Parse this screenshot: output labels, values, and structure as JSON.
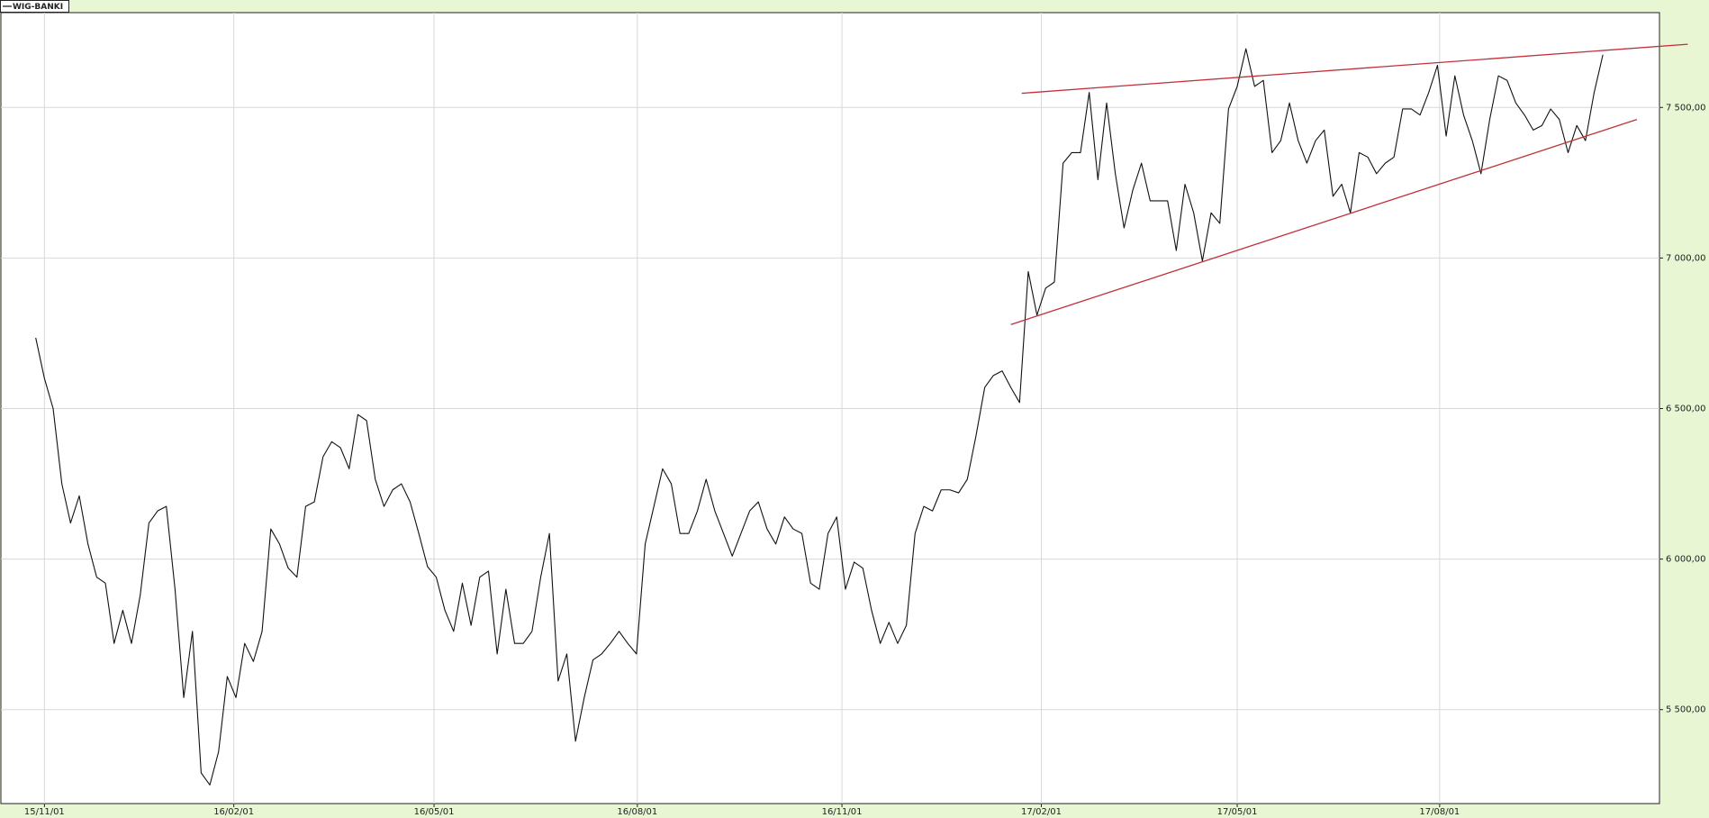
{
  "chart_data": {
    "type": "line",
    "series": [
      {
        "name": "WIG-BANKI",
        "color": "#111111",
        "values": [
          6735,
          6600,
          6500,
          6250,
          6120,
          6210,
          6050,
          5940,
          5920,
          5720,
          5830,
          5720,
          5880,
          6120,
          6160,
          6175,
          5900,
          5540,
          5760,
          5290,
          5250,
          5360,
          5610,
          5540,
          5720,
          5660,
          5760,
          6100,
          6050,
          5970,
          5940,
          6175,
          6190,
          6340,
          6390,
          6370,
          6300,
          6480,
          6460,
          6265,
          6175,
          6230,
          6250,
          6190,
          6085,
          5975,
          5940,
          5830,
          5760,
          5920,
          5780,
          5940,
          5960,
          5685,
          5900,
          5720,
          5720,
          5760,
          5940,
          6085,
          5595,
          5685,
          5395,
          5540,
          5665,
          5685,
          5720,
          5760,
          5720,
          5685,
          6050,
          6175,
          6300,
          6250,
          6085,
          6085,
          6160,
          6265,
          6160,
          6085,
          6010,
          6085,
          6160,
          6190,
          6100,
          6050,
          6140,
          6100,
          6085,
          5920,
          5900,
          6085,
          6140,
          5900,
          5990,
          5970,
          5830,
          5720,
          5790,
          5720,
          5780,
          6085,
          6175,
          6160,
          6230,
          6230,
          6220,
          6265,
          6410,
          6570,
          6610,
          6625,
          6570,
          6520,
          6955,
          6810,
          6900,
          6920,
          7315,
          7350,
          7350,
          7550,
          7260,
          7515,
          7280,
          7100,
          7225,
          7315,
          7190,
          7190,
          7190,
          7025,
          7245,
          7150,
          6990,
          7150,
          7115,
          7495,
          7570,
          7695,
          7570,
          7590,
          7350,
          7390,
          7515,
          7390,
          7315,
          7390,
          7425,
          7205,
          7245,
          7150,
          7350,
          7335,
          7280,
          7315,
          7335,
          7495,
          7495,
          7475,
          7550,
          7640,
          7405,
          7605,
          7475,
          7390,
          7280,
          7460,
          7605,
          7590,
          7515,
          7475,
          7425,
          7440,
          7495,
          7460,
          7350,
          7440,
          7390,
          7550,
          7675
        ]
      }
    ],
    "x": [
      0,
      1,
      2,
      3,
      4,
      5,
      6,
      7,
      8,
      9,
      10,
      11,
      12,
      13,
      14,
      15,
      16,
      17,
      18,
      19,
      20,
      21,
      22,
      23,
      24,
      25,
      26,
      27,
      28,
      29,
      30,
      31,
      32,
      33,
      34,
      35,
      36,
      37,
      38,
      39,
      40,
      41,
      42,
      43,
      44,
      45,
      46,
      47,
      48,
      49,
      50,
      51,
      52,
      53,
      54,
      55,
      56,
      57,
      58,
      59,
      60,
      61,
      62,
      63,
      64,
      65,
      66,
      67,
      68,
      69,
      70,
      71,
      72,
      73,
      74,
      75,
      76,
      77,
      78,
      79,
      80,
      81,
      82,
      83,
      84,
      85,
      86,
      87,
      88,
      89,
      90,
      91,
      92,
      93,
      94,
      95,
      96,
      97,
      98,
      99,
      100,
      101,
      102,
      103,
      104,
      105,
      106,
      107,
      108,
      109,
      110,
      111,
      112,
      113,
      114,
      115,
      116,
      117,
      118,
      119,
      120,
      121,
      122,
      123,
      124,
      125,
      126,
      127,
      128,
      129,
      130,
      131,
      132,
      133,
      134,
      135,
      136,
      137,
      138,
      139,
      140,
      141,
      142,
      143,
      144,
      145,
      146,
      147,
      148,
      149,
      150,
      151,
      152,
      153,
      154,
      155,
      156,
      157,
      158,
      159,
      160,
      161,
      162,
      163,
      164,
      165,
      166,
      167,
      168,
      169,
      170,
      171,
      172,
      173,
      174,
      175,
      176,
      177,
      178,
      179,
      180
    ],
    "xlim": [
      -4,
      186.5
    ],
    "xticks": [
      {
        "value": 1,
        "label": "15/11/01"
      },
      {
        "value": 22.75,
        "label": "16/02/01"
      },
      {
        "value": 45.75,
        "label": "16/05/01"
      },
      {
        "value": 69.1,
        "label": "16/08/01"
      },
      {
        "value": 92.6,
        "label": "16/11/01"
      },
      {
        "value": 115.5,
        "label": "17/02/01"
      },
      {
        "value": 138,
        "label": "17/05/01"
      },
      {
        "value": 161.25,
        "label": "17/08/01"
      }
    ],
    "ylim": [
      5188,
      7815
    ],
    "yticks": [
      {
        "value": 5500,
        "label": "5 500,00"
      },
      {
        "value": 6000,
        "label": "6 000,00"
      },
      {
        "value": 6500,
        "label": "6 500,00"
      },
      {
        "value": 7000,
        "label": "7 000,00"
      },
      {
        "value": 7500,
        "label": "7 500,00"
      }
    ],
    "grid": true,
    "trendlines": [
      {
        "color": "#c0303a",
        "x": [
          113.25,
          189.75
        ],
        "y": [
          7547,
          7710
        ]
      },
      {
        "color": "#c0303a",
        "x": [
          112,
          183.9
        ],
        "y": [
          6779,
          7460
        ]
      }
    ]
  }
}
